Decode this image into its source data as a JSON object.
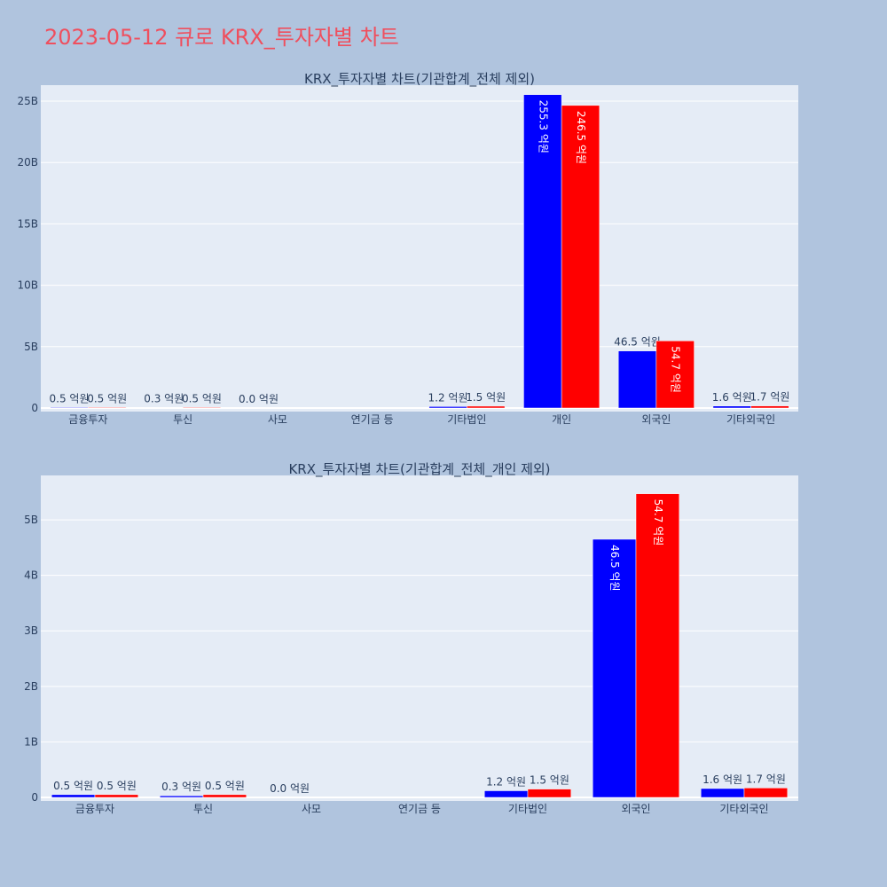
{
  "page": {
    "title": "2023-05-12 큐로 KRX_투자자별 차트"
  },
  "colors": {
    "background": "#b0c4de",
    "plot_bg": "#e5ecf6",
    "series_blue": "#0000ff",
    "series_red": "#ff0000",
    "title": "#ef4f5e",
    "text": "#2a3f5f"
  },
  "chart_data": [
    {
      "type": "bar",
      "title": "KRX_투자자별 차트(기관합계_전체 제외)",
      "xlabel": "",
      "ylabel": "",
      "categories": [
        "금융투자",
        "투신",
        "사모",
        "연기금 등",
        "기타법인",
        "개인",
        "외국인",
        "기타외국인"
      ],
      "ylim": [
        0,
        26.3
      ],
      "yticks": [
        0,
        5,
        10,
        15,
        20,
        25
      ],
      "ytick_labels": [
        "0",
        "5B",
        "10B",
        "15B",
        "20B",
        "25B"
      ],
      "grid": true,
      "series": [
        {
          "color": "#0000ff",
          "values": [
            0.05,
            0.03,
            0.0,
            0.0,
            0.12,
            25.53,
            4.65,
            0.16
          ],
          "labels": [
            "0.5 억원",
            "0.3 억원",
            "0.0 억원",
            "",
            "1.2 억원",
            "255.3 억원",
            "46.5 억원",
            "1.6 억원"
          ]
        },
        {
          "color": "#ff0000",
          "values": [
            0.05,
            0.05,
            0.0,
            0.0,
            0.15,
            24.65,
            5.47,
            0.17
          ],
          "labels": [
            "0.5 억원",
            "0.5 억원",
            "",
            "",
            "1.5 억원",
            "246.5 억원",
            "54.7 억원",
            "1.7 억원"
          ]
        }
      ]
    },
    {
      "type": "bar",
      "title": "KRX_투자자별 차트(기관합계_전체_개인 제외)",
      "xlabel": "",
      "ylabel": "",
      "categories": [
        "금융투자",
        "투신",
        "사모",
        "연기금 등",
        "기타법인",
        "외국인",
        "기타외국인"
      ],
      "ylim": [
        0,
        5.8
      ],
      "yticks": [
        0,
        1,
        2,
        3,
        4,
        5
      ],
      "ytick_labels": [
        "0",
        "1B",
        "2B",
        "3B",
        "4B",
        "5B"
      ],
      "grid": true,
      "series": [
        {
          "color": "#0000ff",
          "values": [
            0.05,
            0.03,
            0.0,
            0.0,
            0.12,
            4.65,
            0.16
          ],
          "labels": [
            "0.5 억원",
            "0.3 억원",
            "0.0 억원",
            "",
            "1.2 억원",
            "46.5 억원",
            "1.6 억원"
          ]
        },
        {
          "color": "#ff0000",
          "values": [
            0.05,
            0.05,
            0.0,
            0.0,
            0.15,
            5.47,
            0.17
          ],
          "labels": [
            "0.5 억원",
            "0.5 억원",
            "",
            "",
            "1.5 억원",
            "54.7 억원",
            "1.7 억원"
          ]
        }
      ]
    }
  ]
}
